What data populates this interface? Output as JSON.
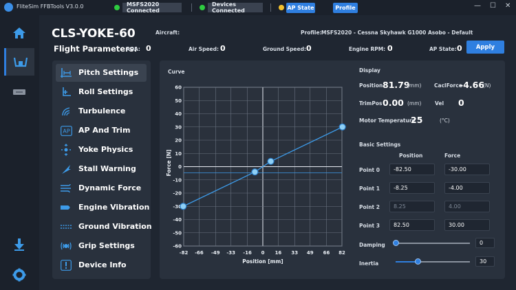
{
  "app": {
    "title": "FliteSim FFBTools V3.0.0"
  },
  "header": {
    "msfs_status": "MSFS2020 Connected",
    "msfs_color": "#2ecc40",
    "devices_status": "Devices Connected",
    "devices_color": "#2ecc40",
    "ap_color": "#f2c12e",
    "ap_state_btn": "AP State",
    "profile_btn": "Profile"
  },
  "window_controls": {
    "minimize": "—",
    "maximize": "☐",
    "close": "✕"
  },
  "device": {
    "title": "CLS-YOKE-60",
    "aircraft_label": "Aircraft:",
    "aircraft_value": "",
    "profile_label": "Profile:",
    "profile_value": "MSFS2020 - Cessna Skyhawk G1000 Asobo - Default"
  },
  "flight": {
    "title": "Flight Parameters:",
    "aoa_label": "AOA:",
    "aoa": "0",
    "airspeed_label": "Air Speed:",
    "airspeed": "0",
    "groundspeed_label": "Ground Speed:",
    "groundspeed": "0",
    "rpm_label": "Engine RPM:",
    "rpm": "0",
    "ap_label": "AP State:",
    "ap": "0",
    "apply": "Apply"
  },
  "menu": {
    "items": [
      {
        "label": "Pitch Settings",
        "icon": "pitch-icon"
      },
      {
        "label": "Roll Settings",
        "icon": "roll-icon"
      },
      {
        "label": "Turbulence",
        "icon": "turbulence-icon"
      },
      {
        "label": "AP And Trim",
        "icon": "ap-icon"
      },
      {
        "label": "Yoke Physics",
        "icon": "physics-icon"
      },
      {
        "label": "Stall Warning",
        "icon": "stall-icon"
      },
      {
        "label": "Dynamic Force",
        "icon": "wind-icon"
      },
      {
        "label": "Engine Vibration",
        "icon": "engine-icon"
      },
      {
        "label": "Ground Vibration",
        "icon": "ground-icon"
      },
      {
        "label": "Grip Settings",
        "icon": "grip-icon"
      },
      {
        "label": "Device Info",
        "icon": "info-icon"
      }
    ],
    "ap_icon_text": "AP"
  },
  "curve": {
    "label": "Curve"
  },
  "chart_data": {
    "type": "line",
    "xlabel": "Position [mm]",
    "ylabel": "Force [N]",
    "xlim": [
      -82,
      82
    ],
    "ylim": [
      -60,
      60
    ],
    "xticks": [
      -82,
      -66,
      -49,
      -33,
      -16,
      0,
      16,
      33,
      49,
      66,
      82
    ],
    "yticks": [
      60,
      50,
      40,
      30,
      20,
      10,
      0,
      -10,
      -20,
      -30,
      -40,
      -50,
      -60
    ],
    "points": [
      {
        "x": -82.5,
        "y": -30
      },
      {
        "x": -8.25,
        "y": -4
      },
      {
        "x": 8.25,
        "y": 4
      },
      {
        "x": 82.5,
        "y": 30
      }
    ],
    "line_color": "#3d9be9",
    "grid": true
  },
  "display": {
    "title": "Display",
    "position_label": "Position",
    "position": "81.79",
    "position_unit": "(mm)",
    "calcforce_label": "CaclForce",
    "calcforce": "-4.66",
    "calcforce_unit": "(N)",
    "trimpos_label": "TrimPos",
    "trimpos": "0.00",
    "trimpos_unit": "(mm)",
    "vel_label": "Vel",
    "vel": "0",
    "motor_temp_label": "Motor Temperature",
    "motor_temp": "25",
    "motor_temp_unit": "(°C)"
  },
  "basic": {
    "title": "Basic Settings",
    "position_header": "Position",
    "force_header": "Force",
    "points": [
      {
        "label": "Point 0",
        "position": "-82.50",
        "force": "-30.00"
      },
      {
        "label": "Point 1",
        "position": "-8.25",
        "force": "-4.00"
      },
      {
        "label": "Point 2",
        "position": "8.25",
        "force": "4.00"
      },
      {
        "label": "Point 3",
        "position": "82.50",
        "force": "30.00"
      }
    ],
    "damping_label": "Damping",
    "damping": "0",
    "damping_level": 0,
    "inertia_label": "Inertia",
    "inertia": "30",
    "inertia_level": 0.3
  }
}
